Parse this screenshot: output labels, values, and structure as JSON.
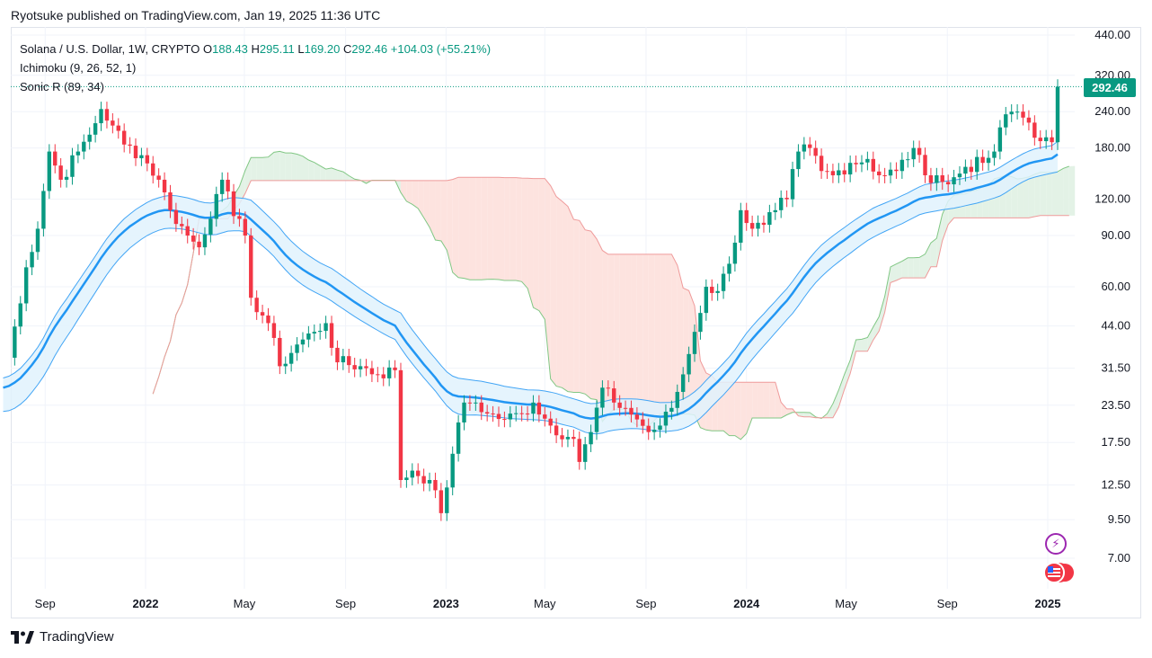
{
  "header": {
    "published": "Ryotsuke published on TradingView.com, Jan 19, 2025 11:36 UTC"
  },
  "legend": {
    "symbol": "Solana / U.S. Dollar, 1W, CRYPTO",
    "o_label": "O",
    "o_value": "188.43",
    "h_label": "H",
    "h_value": "295.11",
    "l_label": "L",
    "l_value": "169.20",
    "c_label": "C",
    "c_value": "292.46",
    "change": "+104.03 (+55.21%)",
    "ichimoku": "Ichimoku (9, 26, 52, 1)",
    "sonic": "Sonic R (89, 34)"
  },
  "last_price": "292.46",
  "footer": {
    "brand": "TradingView",
    "logo_glyph": "𝟏𝟕"
  },
  "icons": {
    "flash": "⚡",
    "flag": "flag-us-icon"
  },
  "colors": {
    "up": "#089981",
    "down": "#f23645",
    "sonic_mid": "#2196f3",
    "sonic_band": "#42a5f5",
    "cloud_bull": "#e3f2e6",
    "cloud_bear": "#fde3df"
  },
  "chart_data": {
    "type": "candlestick",
    "title": "Solana / U.S. Dollar, 1W, CRYPTO",
    "y_scale": "log",
    "ylim": [
      5.5,
      480
    ],
    "y_ticks": [
      {
        "label": "440.00",
        "value": 440
      },
      {
        "label": "320.00",
        "value": 320
      },
      {
        "label": "240.00",
        "value": 240
      },
      {
        "label": "180.00",
        "value": 180
      },
      {
        "label": "120.00",
        "value": 120
      },
      {
        "label": "90.00",
        "value": 90
      },
      {
        "label": "60.00",
        "value": 60
      },
      {
        "label": "44.00",
        "value": 44
      },
      {
        "label": "31.50",
        "value": 31.5
      },
      {
        "label": "23.50",
        "value": 23.5
      },
      {
        "label": "17.50",
        "value": 17.5
      },
      {
        "label": "12.50",
        "value": 12.5
      },
      {
        "label": "9.50",
        "value": 9.5
      },
      {
        "label": "7.00",
        "value": 7
      }
    ],
    "x_ticks": [
      {
        "label": "Sep",
        "date": "2021-09-01",
        "bold": false
      },
      {
        "label": "2022",
        "date": "2022-01-01",
        "bold": true
      },
      {
        "label": "May",
        "date": "2022-05-01",
        "bold": false
      },
      {
        "label": "Sep",
        "date": "2022-09-01",
        "bold": false
      },
      {
        "label": "2023",
        "date": "2023-01-01",
        "bold": true
      },
      {
        "label": "May",
        "date": "2023-05-01",
        "bold": false
      },
      {
        "label": "Sep",
        "date": "2023-09-01",
        "bold": false
      },
      {
        "label": "2024",
        "date": "2024-01-01",
        "bold": true
      },
      {
        "label": "May",
        "date": "2024-05-01",
        "bold": false
      },
      {
        "label": "Sep",
        "date": "2024-09-01",
        "bold": false
      },
      {
        "label": "2025",
        "date": "2025-01-01",
        "bold": true
      }
    ],
    "close_series": {
      "name": "Solana / U.S. Dollar",
      "first_week": "2021-07-12",
      "points": [
        [
          "2021-07-12",
          27
        ],
        [
          "2021-08-09",
          70
        ],
        [
          "2021-08-23",
          95
        ],
        [
          "2021-09-06",
          175
        ],
        [
          "2021-09-20",
          140
        ],
        [
          "2021-10-11",
          175
        ],
        [
          "2021-10-25",
          200
        ],
        [
          "2021-11-08",
          245
        ],
        [
          "2021-11-22",
          215
        ],
        [
          "2021-12-06",
          185
        ],
        [
          "2021-12-27",
          170
        ],
        [
          "2022-01-17",
          140
        ],
        [
          "2022-01-31",
          110
        ],
        [
          "2022-02-21",
          90
        ],
        [
          "2022-03-07",
          82
        ],
        [
          "2022-03-28",
          125
        ],
        [
          "2022-04-04",
          140
        ],
        [
          "2022-04-18",
          105
        ],
        [
          "2022-05-02",
          90
        ],
        [
          "2022-05-09",
          55
        ],
        [
          "2022-05-30",
          45
        ],
        [
          "2022-06-13",
          32
        ],
        [
          "2022-07-04",
          38
        ],
        [
          "2022-07-25",
          42
        ],
        [
          "2022-08-08",
          45
        ],
        [
          "2022-08-22",
          33
        ],
        [
          "2022-09-19",
          32
        ],
        [
          "2022-10-10",
          30
        ],
        [
          "2022-10-31",
          31
        ],
        [
          "2022-11-07",
          13
        ],
        [
          "2022-11-21",
          14
        ],
        [
          "2022-12-12",
          13
        ],
        [
          "2022-12-26",
          10
        ],
        [
          "2023-01-09",
          16
        ],
        [
          "2023-01-23",
          24
        ],
        [
          "2023-02-06",
          24
        ],
        [
          "2023-02-20",
          22
        ],
        [
          "2023-03-13",
          21
        ],
        [
          "2023-04-03",
          22
        ],
        [
          "2023-04-17",
          24
        ],
        [
          "2023-05-08",
          20
        ],
        [
          "2023-06-05",
          18
        ],
        [
          "2023-06-12",
          15
        ],
        [
          "2023-06-26",
          19
        ],
        [
          "2023-07-10",
          27
        ],
        [
          "2023-07-24",
          24
        ],
        [
          "2023-08-07",
          23
        ],
        [
          "2023-08-21",
          21
        ],
        [
          "2023-09-04",
          19
        ],
        [
          "2023-09-18",
          20
        ],
        [
          "2023-10-02",
          23
        ],
        [
          "2023-10-16",
          30
        ],
        [
          "2023-10-30",
          42
        ],
        [
          "2023-11-13",
          60
        ],
        [
          "2023-11-27",
          58
        ],
        [
          "2023-12-11",
          72
        ],
        [
          "2023-12-25",
          110
        ],
        [
          "2024-01-08",
          95
        ],
        [
          "2024-01-22",
          98
        ],
        [
          "2024-02-05",
          110
        ],
        [
          "2024-02-19",
          120
        ],
        [
          "2024-03-04",
          175
        ],
        [
          "2024-03-18",
          180
        ],
        [
          "2024-04-01",
          150
        ],
        [
          "2024-04-15",
          145
        ],
        [
          "2024-05-06",
          160
        ],
        [
          "2024-05-27",
          165
        ],
        [
          "2024-06-10",
          145
        ],
        [
          "2024-07-01",
          150
        ],
        [
          "2024-07-22",
          180
        ],
        [
          "2024-08-05",
          145
        ],
        [
          "2024-08-19",
          145
        ],
        [
          "2024-09-02",
          135
        ],
        [
          "2024-09-23",
          155
        ],
        [
          "2024-10-14",
          160
        ],
        [
          "2024-10-28",
          175
        ],
        [
          "2024-11-11",
          235
        ],
        [
          "2024-11-25",
          240
        ],
        [
          "2024-12-09",
          220
        ],
        [
          "2024-12-23",
          190
        ],
        [
          "2025-01-06",
          188.43
        ],
        [
          "2025-01-13",
          292.46
        ]
      ]
    }
  }
}
